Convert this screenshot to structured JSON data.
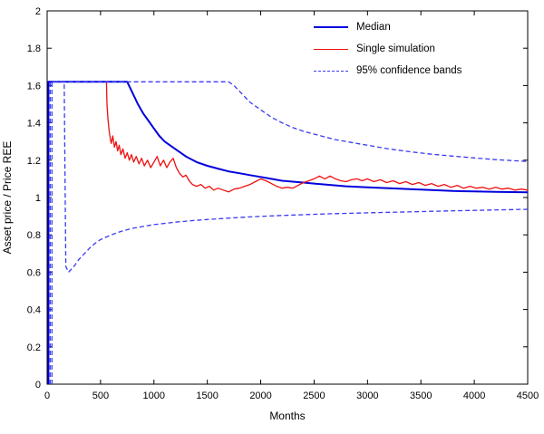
{
  "figure": {
    "legend": [
      {
        "label": "Median",
        "color": "#0000dd",
        "dash": false,
        "width": 2
      },
      {
        "label": "Single simulation",
        "color": "#ee1111",
        "dash": false,
        "width": 1.3
      },
      {
        "label": "95% confidence bands",
        "color": "#3a3af0",
        "dash": true,
        "width": 1.3
      }
    ]
  },
  "chart_data": {
    "type": "line",
    "title": "",
    "xlabel": "Months",
    "ylabel": "Asset price / Price REE",
    "xlim": [
      0,
      4500
    ],
    "ylim": [
      0,
      2
    ],
    "xticks": [
      0,
      500,
      1000,
      1500,
      2000,
      2500,
      3000,
      3500,
      4000,
      4500
    ],
    "yticks": [
      0,
      0.2,
      0.4,
      0.6,
      0.8,
      1,
      1.2,
      1.4,
      1.6,
      1.8,
      2
    ],
    "grid": false,
    "legend_position": "top-right",
    "series": [
      {
        "name": "Median",
        "color": "#0000dd",
        "style": "solid",
        "line_width": 2,
        "points": [
          [
            12,
            0
          ],
          [
            12,
            1.62
          ],
          [
            750,
            1.62
          ],
          [
            800,
            1.56
          ],
          [
            850,
            1.5
          ],
          [
            900,
            1.45
          ],
          [
            950,
            1.41
          ],
          [
            1000,
            1.37
          ],
          [
            1050,
            1.33
          ],
          [
            1100,
            1.3
          ],
          [
            1150,
            1.28
          ],
          [
            1200,
            1.26
          ],
          [
            1300,
            1.22
          ],
          [
            1400,
            1.19
          ],
          [
            1500,
            1.17
          ],
          [
            1600,
            1.155
          ],
          [
            1700,
            1.14
          ],
          [
            1800,
            1.13
          ],
          [
            1900,
            1.12
          ],
          [
            2000,
            1.11
          ],
          [
            2100,
            1.1
          ],
          [
            2200,
            1.09
          ],
          [
            2300,
            1.085
          ],
          [
            2400,
            1.08
          ],
          [
            2500,
            1.075
          ],
          [
            2600,
            1.07
          ],
          [
            2800,
            1.06
          ],
          [
            3000,
            1.055
          ],
          [
            3200,
            1.05
          ],
          [
            3400,
            1.045
          ],
          [
            3600,
            1.04
          ],
          [
            3800,
            1.035
          ],
          [
            4000,
            1.033
          ],
          [
            4200,
            1.03
          ],
          [
            4500,
            1.028
          ]
        ]
      },
      {
        "name": "Single simulation",
        "color": "#ee1111",
        "style": "solid",
        "line_width": 1.3,
        "points": [
          [
            555,
            1.62
          ],
          [
            560,
            1.5
          ],
          [
            570,
            1.42
          ],
          [
            580,
            1.36
          ],
          [
            590,
            1.32
          ],
          [
            600,
            1.29
          ],
          [
            615,
            1.33
          ],
          [
            630,
            1.27
          ],
          [
            645,
            1.3
          ],
          [
            660,
            1.25
          ],
          [
            675,
            1.28
          ],
          [
            690,
            1.23
          ],
          [
            710,
            1.26
          ],
          [
            730,
            1.21
          ],
          [
            750,
            1.24
          ],
          [
            770,
            1.2
          ],
          [
            790,
            1.23
          ],
          [
            810,
            1.19
          ],
          [
            835,
            1.22
          ],
          [
            860,
            1.18
          ],
          [
            885,
            1.21
          ],
          [
            910,
            1.17
          ],
          [
            940,
            1.2
          ],
          [
            970,
            1.16
          ],
          [
            1000,
            1.19
          ],
          [
            1030,
            1.22
          ],
          [
            1060,
            1.17
          ],
          [
            1090,
            1.2
          ],
          [
            1120,
            1.16
          ],
          [
            1150,
            1.19
          ],
          [
            1180,
            1.21
          ],
          [
            1210,
            1.16
          ],
          [
            1240,
            1.13
          ],
          [
            1270,
            1.11
          ],
          [
            1300,
            1.12
          ],
          [
            1330,
            1.09
          ],
          [
            1360,
            1.07
          ],
          [
            1400,
            1.06
          ],
          [
            1440,
            1.07
          ],
          [
            1480,
            1.05
          ],
          [
            1520,
            1.06
          ],
          [
            1560,
            1.04
          ],
          [
            1600,
            1.05
          ],
          [
            1650,
            1.04
          ],
          [
            1700,
            1.03
          ],
          [
            1750,
            1.045
          ],
          [
            1800,
            1.05
          ],
          [
            1850,
            1.06
          ],
          [
            1900,
            1.07
          ],
          [
            1950,
            1.085
          ],
          [
            2000,
            1.1
          ],
          [
            2050,
            1.09
          ],
          [
            2100,
            1.075
          ],
          [
            2150,
            1.06
          ],
          [
            2200,
            1.05
          ],
          [
            2250,
            1.055
          ],
          [
            2300,
            1.05
          ],
          [
            2350,
            1.065
          ],
          [
            2400,
            1.08
          ],
          [
            2450,
            1.09
          ],
          [
            2500,
            1.1
          ],
          [
            2550,
            1.115
          ],
          [
            2600,
            1.1
          ],
          [
            2650,
            1.115
          ],
          [
            2700,
            1.1
          ],
          [
            2750,
            1.09
          ],
          [
            2800,
            1.085
          ],
          [
            2850,
            1.095
          ],
          [
            2900,
            1.1
          ],
          [
            2950,
            1.09
          ],
          [
            3000,
            1.1
          ],
          [
            3060,
            1.085
          ],
          [
            3120,
            1.095
          ],
          [
            3180,
            1.08
          ],
          [
            3240,
            1.09
          ],
          [
            3300,
            1.075
          ],
          [
            3360,
            1.085
          ],
          [
            3420,
            1.07
          ],
          [
            3480,
            1.08
          ],
          [
            3540,
            1.065
          ],
          [
            3600,
            1.075
          ],
          [
            3660,
            1.06
          ],
          [
            3720,
            1.07
          ],
          [
            3780,
            1.055
          ],
          [
            3840,
            1.065
          ],
          [
            3900,
            1.05
          ],
          [
            3960,
            1.06
          ],
          [
            4020,
            1.05
          ],
          [
            4080,
            1.055
          ],
          [
            4140,
            1.045
          ],
          [
            4200,
            1.055
          ],
          [
            4260,
            1.045
          ],
          [
            4320,
            1.05
          ],
          [
            4380,
            1.04
          ],
          [
            4440,
            1.045
          ],
          [
            4500,
            1.04
          ]
        ]
      },
      {
        "name": "95% confidence band upper",
        "color": "#3a3af0",
        "style": "dashed",
        "line_width": 1.3,
        "points": [
          [
            45,
            0
          ],
          [
            45,
            1.62
          ],
          [
            1700,
            1.62
          ],
          [
            1750,
            1.6
          ],
          [
            1800,
            1.57
          ],
          [
            1850,
            1.54
          ],
          [
            1900,
            1.51
          ],
          [
            1950,
            1.49
          ],
          [
            2000,
            1.47
          ],
          [
            2100,
            1.43
          ],
          [
            2200,
            1.4
          ],
          [
            2300,
            1.375
          ],
          [
            2400,
            1.355
          ],
          [
            2500,
            1.34
          ],
          [
            2600,
            1.325
          ],
          [
            2700,
            1.31
          ],
          [
            2800,
            1.3
          ],
          [
            2900,
            1.29
          ],
          [
            3000,
            1.28
          ],
          [
            3200,
            1.26
          ],
          [
            3400,
            1.245
          ],
          [
            3600,
            1.232
          ],
          [
            3800,
            1.222
          ],
          [
            4000,
            1.212
          ],
          [
            4200,
            1.203
          ],
          [
            4500,
            1.193
          ]
        ]
      },
      {
        "name": "95% confidence band lower",
        "color": "#3a3af0",
        "style": "dashed",
        "line_width": 1.3,
        "points": [
          [
            28,
            0
          ],
          [
            28,
            1.62
          ],
          [
            160,
            1.62
          ],
          [
            175,
            0.63
          ],
          [
            200,
            0.6
          ],
          [
            250,
            0.63
          ],
          [
            300,
            0.67
          ],
          [
            350,
            0.7
          ],
          [
            400,
            0.73
          ],
          [
            450,
            0.755
          ],
          [
            500,
            0.775
          ],
          [
            600,
            0.8
          ],
          [
            700,
            0.82
          ],
          [
            800,
            0.835
          ],
          [
            900,
            0.845
          ],
          [
            1000,
            0.855
          ],
          [
            1200,
            0.868
          ],
          [
            1400,
            0.878
          ],
          [
            1600,
            0.886
          ],
          [
            1800,
            0.893
          ],
          [
            2000,
            0.899
          ],
          [
            2200,
            0.904
          ],
          [
            2400,
            0.908
          ],
          [
            2600,
            0.912
          ],
          [
            2800,
            0.915
          ],
          [
            3000,
            0.918
          ],
          [
            3300,
            0.922
          ],
          [
            3600,
            0.926
          ],
          [
            4000,
            0.931
          ],
          [
            4500,
            0.937
          ]
        ]
      }
    ]
  }
}
